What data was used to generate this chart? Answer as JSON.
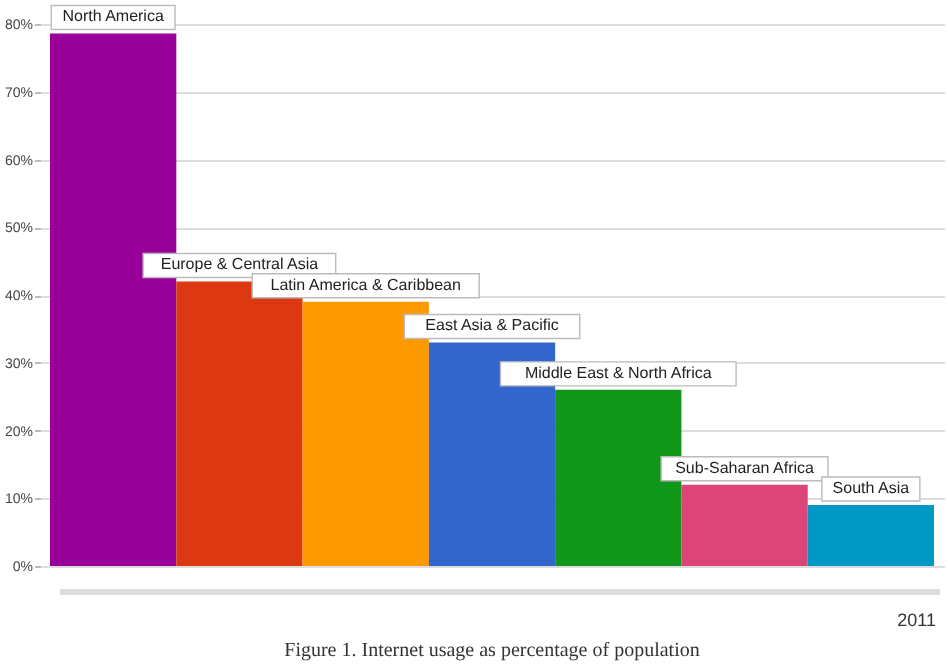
{
  "chart_data": {
    "type": "bar",
    "categories": [
      "North America",
      "Europe & Central Asia",
      "Latin America & Caribbean",
      "East Asia & Pacific",
      "Middle East & North Africa",
      "Sub-Saharan Africa",
      "South Asia"
    ],
    "values": [
      78.6,
      42,
      39,
      33,
      26,
      12,
      9
    ],
    "colors": [
      "#990099",
      "#dc3912",
      "#ff9900",
      "#3366cc",
      "#109618",
      "#dd4477",
      "#0099c6"
    ],
    "ylim": [
      0,
      80
    ],
    "yticks": [
      {
        "value": 0,
        "label": "0%"
      },
      {
        "value": 10,
        "label": "10%"
      },
      {
        "value": 20,
        "label": "20%"
      },
      {
        "value": 30,
        "label": "30%"
      },
      {
        "value": 40,
        "label": "40%"
      },
      {
        "value": 50,
        "label": "50%"
      },
      {
        "value": 60,
        "label": "60%"
      },
      {
        "value": 70,
        "label": "70%"
      },
      {
        "value": 80,
        "label": "80%"
      }
    ],
    "grid": "y",
    "annotations": [
      "2011",
      "Figure 1. Internet usage as percentage of population"
    ]
  }
}
